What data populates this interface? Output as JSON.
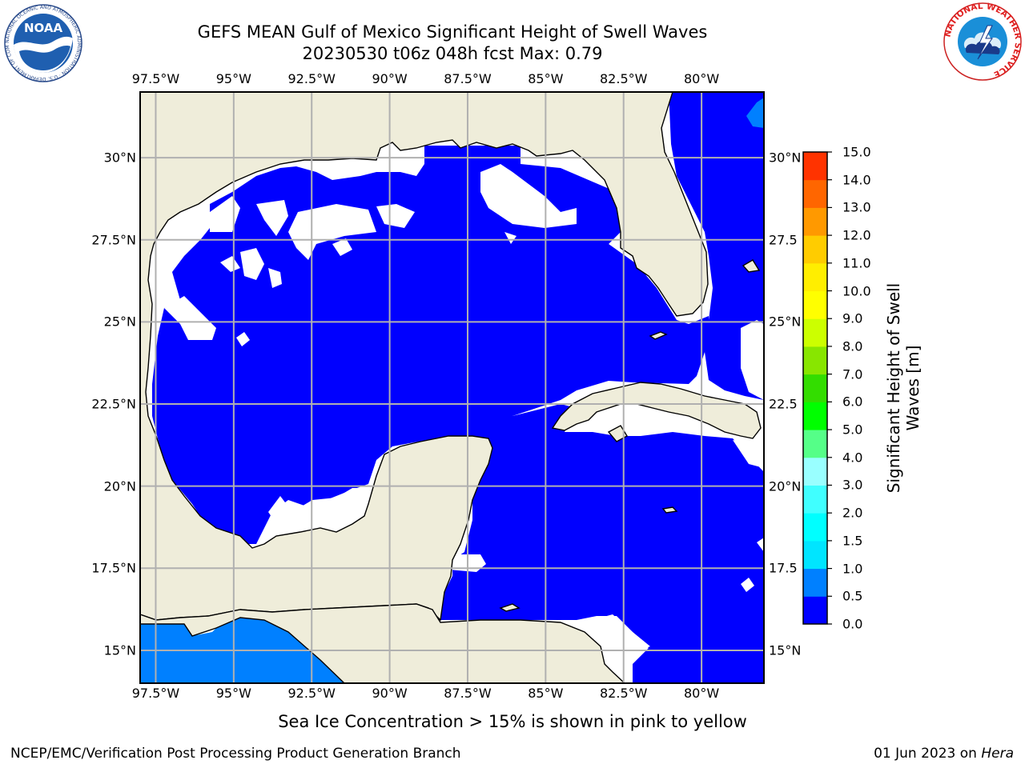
{
  "title_line1": "GEFS MEAN Gulf of Mexico Significant Height of Swell Waves",
  "title_line2": "20230530 t06z 048h fcst   Max: 0.79",
  "map": {
    "lon_range": [
      -98.0,
      -78.0
    ],
    "lat_range": [
      14.0,
      32.0
    ],
    "lon_ticks": [
      "97.5°W",
      "95°W",
      "92.5°W",
      "90°W",
      "87.5°W",
      "85°W",
      "82.5°W",
      "80°W"
    ],
    "lat_ticks_left": [
      "30°N",
      "27.5°N",
      "25°N",
      "22.5°N",
      "20°N",
      "17.5°N",
      "15°N"
    ],
    "lat_ticks_right": [
      "30°N",
      "27.5",
      "25°N",
      "22.5",
      "20°N",
      "17.5",
      "15°N"
    ],
    "gridlines": true,
    "land_color": "#efedda",
    "ocean_value_color": "#0000ff"
  },
  "colorbar": {
    "label_line1": "Significant Height of Swell",
    "label_line2": "Waves [m]",
    "ticks": [
      "0.0",
      "0.5",
      "1.0",
      "1.5",
      "2.0",
      "3.0",
      "4.0",
      "5.0",
      "6.0",
      "7.0",
      "8.0",
      "9.0",
      "10.0",
      "11.0",
      "12.0",
      "13.0",
      "14.0",
      "15.0"
    ],
    "colors": [
      "#0000ff",
      "#0080ff",
      "#00e5ff",
      "#00ffff",
      "#40ffff",
      "#99ffff",
      "#55ff88",
      "#00ff00",
      "#33dd00",
      "#88e600",
      "#ccff00",
      "#ffff00",
      "#ffee00",
      "#ffcc00",
      "#ff9900",
      "#ff6600",
      "#ff3300"
    ]
  },
  "subtitle": "Sea Ice Concentration > 15% is shown in pink to yellow",
  "footer_left": "NCEP/EMC/Verification Post Processing Product Generation Branch",
  "footer_right_date": "01 Jun 2023 on ",
  "footer_right_host": "Hera",
  "logo_left": {
    "text": "NOAA",
    "ring_text": "NATIONAL OCEANIC AND ATMOSPHERIC ADMINISTRATION · U.S. DEPARTMENT OF COMMERCE"
  },
  "logo_right": {
    "ring_text": "NATIONAL WEATHER SERVICE"
  }
}
